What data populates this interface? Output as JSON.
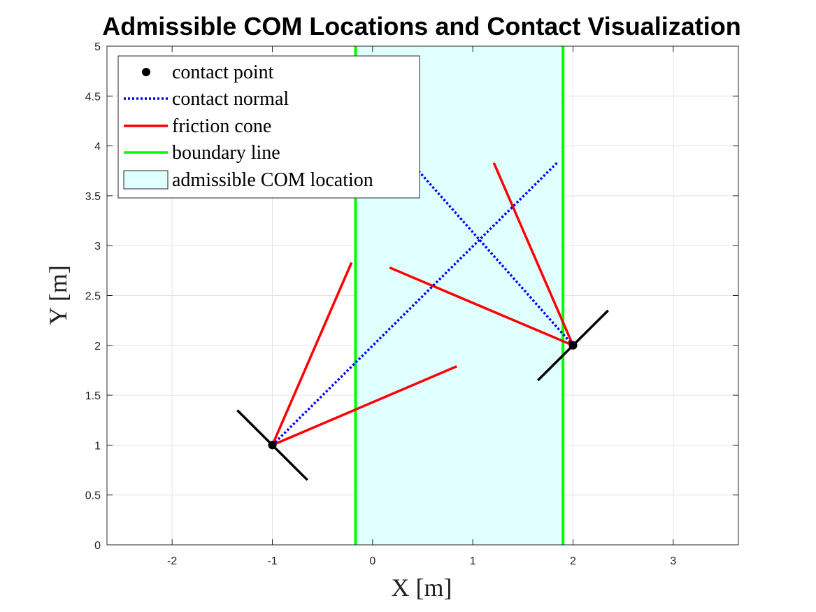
{
  "chart_data": {
    "type": "line",
    "title": "Admissible COM Locations and Contact Visualization",
    "xlabel": "X [m]",
    "ylabel": "Y [m]",
    "xlim": [
      -2.65,
      3.65
    ],
    "ylim": [
      0,
      5
    ],
    "xticks": [
      -2,
      -1,
      0,
      1,
      2,
      3
    ],
    "yticks": [
      0,
      0.5,
      1,
      1.5,
      2,
      2.5,
      3,
      3.5,
      4,
      4.5,
      5
    ],
    "xtick_labels": [
      "-2",
      "-1",
      "0",
      "1",
      "2",
      "3"
    ],
    "ytick_labels": [
      "0",
      "0.5",
      "1",
      "1.5",
      "2",
      "2.5",
      "3",
      "3.5",
      "4",
      "4.5",
      "5"
    ],
    "grid": true,
    "legend_position": "top-left",
    "admissible_region": {
      "x_min": -0.17,
      "x_max": 1.9,
      "color": "#e0ffff"
    },
    "series": [
      {
        "name": "contact point",
        "style": "marker",
        "color": "#000000",
        "points": [
          [
            -1,
            1
          ],
          [
            2,
            2
          ]
        ]
      },
      {
        "name": "contact normal",
        "style": "dotted",
        "color": "#0000ff",
        "segments": [
          [
            [
              -1,
              1
            ],
            [
              1.85,
              3.84
            ]
          ],
          [
            [
              2,
              2
            ],
            [
              0.44,
              3.77
            ]
          ]
        ]
      },
      {
        "name": "friction cone",
        "style": "solid",
        "color": "#ff0000",
        "segments": [
          [
            [
              -1,
              1
            ],
            [
              -0.21,
              2.83
            ]
          ],
          [
            [
              -1,
              1
            ],
            [
              0.84,
              1.79
            ]
          ],
          [
            [
              2,
              2
            ],
            [
              1.21,
              3.83
            ]
          ],
          [
            [
              2,
              2
            ],
            [
              0.17,
              2.78
            ]
          ]
        ]
      },
      {
        "name": "boundary line",
        "style": "solid",
        "color": "#00ff00",
        "segments": [
          [
            [
              -0.17,
              0
            ],
            [
              -0.17,
              5
            ]
          ],
          [
            [
              1.9,
              0
            ],
            [
              1.9,
              5
            ]
          ]
        ]
      },
      {
        "name": "admissible COM location",
        "style": "patch",
        "color": "#e0ffff"
      }
    ],
    "surfaces": [
      {
        "color": "#000000",
        "segment": [
          [
            -1.35,
            1.35
          ],
          [
            -0.65,
            0.65
          ]
        ]
      },
      {
        "color": "#000000",
        "segment": [
          [
            1.65,
            1.65
          ],
          [
            2.35,
            2.35
          ]
        ]
      }
    ]
  }
}
